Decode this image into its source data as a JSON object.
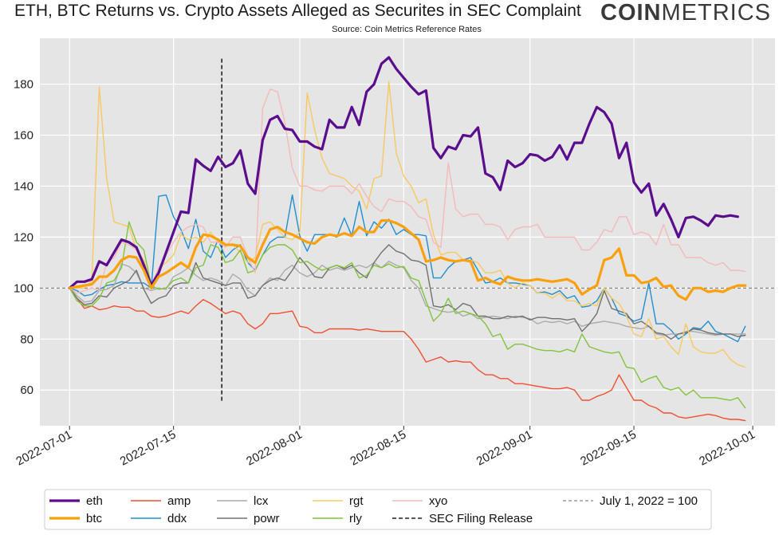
{
  "chart_data": {
    "type": "line",
    "title": "ETH, BTC Returns vs. Crypto Assets Alleged as Securites in SEC Complaint",
    "subtitle": "Source: Coin Metrics Reference Rates",
    "xlabel": "",
    "ylabel": "",
    "x_start": "2022-07-01",
    "x_ticks": [
      {
        "label": "2022-07-01",
        "day": 0
      },
      {
        "label": "2022-07-15",
        "day": 14
      },
      {
        "label": "2022-08-01",
        "day": 31
      },
      {
        "label": "2022-08-15",
        "day": 45
      },
      {
        "label": "2022-09-01",
        "day": 62
      },
      {
        "label": "2022-09-15",
        "day": 76
      },
      {
        "label": "2022-10-01",
        "day": 92
      }
    ],
    "xlim": [
      -4,
      95
    ],
    "ylim": [
      46,
      198
    ],
    "y_ticks": [
      60,
      80,
      100,
      120,
      140,
      160,
      180
    ],
    "grid": true,
    "legend_position": "bottom",
    "reference_line": {
      "name": "July 1, 2022 = 100",
      "value": 100,
      "color": "#888888"
    },
    "event_line": {
      "name": "SEC Filing Release",
      "day": 20.5,
      "y_range": [
        55,
        190
      ],
      "color": "#222222"
    },
    "series": [
      {
        "name": "eth",
        "color": "#5a0d8c",
        "width": 3.2,
        "values": [
          100,
          102.5,
          102.5,
          103.5,
          110.5,
          109,
          114,
          119,
          118,
          116,
          109,
          101,
          106,
          114,
          122,
          130,
          129.5,
          150.5,
          148,
          146,
          151.5,
          147.5,
          149,
          154,
          141,
          137,
          158,
          166,
          167.5,
          162.5,
          162,
          157.5,
          157.5,
          155.5,
          154.5,
          166,
          163,
          163,
          171,
          164,
          177,
          180,
          188,
          190.5,
          186,
          182.5,
          179,
          176,
          177.5,
          155,
          151,
          155.5,
          154.5,
          160,
          159.5,
          163,
          145,
          143.5,
          138.5,
          150,
          147.5,
          149,
          152.5,
          152,
          150,
          151.5,
          156,
          150.5,
          157,
          157,
          164.5,
          171,
          169,
          164.5,
          151,
          157,
          141.5,
          137.5,
          141,
          128.5,
          133,
          127,
          120,
          127.5,
          128,
          126.5,
          124.5,
          128.5,
          128,
          128.5,
          128
        ]
      },
      {
        "name": "btc",
        "color": "#f9a00c",
        "width": 3.2,
        "values": [
          100,
          100.5,
          101,
          101.5,
          104.5,
          104.5,
          107,
          111,
          112.5,
          112,
          107,
          100,
          104.5,
          106,
          108,
          110,
          108,
          116,
          121,
          120.5,
          119,
          117,
          117,
          116.5,
          112,
          110,
          117,
          123,
          124,
          122,
          121,
          119.5,
          118,
          117.5,
          120,
          121,
          120.5,
          121.5,
          120.5,
          124,
          122,
          122,
          126.5,
          126.5,
          125.5,
          124,
          121.5,
          119,
          110.5,
          111,
          112,
          111,
          110.5,
          111,
          110.5,
          103,
          104,
          102.5,
          101.5,
          104.5,
          103.5,
          103,
          103,
          103.5,
          103,
          102.5,
          103,
          103.5,
          102,
          97.5,
          99.5,
          101,
          111,
          112,
          115.5,
          105,
          105,
          102,
          102.5,
          104,
          100.5,
          101,
          97,
          95.5,
          100,
          100,
          98.5,
          99,
          98.5,
          100,
          101,
          101
        ]
      },
      {
        "name": "amp",
        "color": "#f05030",
        "width": 1.4,
        "values": [
          100,
          96,
          92,
          93,
          91.5,
          92,
          93,
          92.5,
          92.5,
          91,
          91,
          89,
          88.5,
          89,
          90,
          91,
          90,
          93,
          95.5,
          94,
          92,
          90,
          91,
          90,
          86,
          84,
          86,
          90,
          90,
          90.5,
          91,
          85,
          84.5,
          82.5,
          82.5,
          84,
          84,
          84,
          84,
          83.5,
          84,
          83.5,
          83,
          83,
          83,
          83,
          80,
          76,
          71,
          72,
          73,
          71,
          71.5,
          71,
          71,
          68,
          66,
          66,
          64.5,
          64.5,
          62.5,
          62.5,
          62,
          61.5,
          61,
          60.5,
          60.5,
          61,
          60,
          56,
          56,
          57.5,
          58.5,
          60,
          66,
          61,
          56,
          56,
          54,
          53,
          51,
          51,
          49.5,
          49,
          49.5,
          50,
          50.5,
          50,
          49,
          48.5,
          48.5,
          48
        ]
      },
      {
        "name": "ddx",
        "color": "#1f8fcf",
        "width": 1.4,
        "values": [
          100,
          99,
          97,
          97.5,
          99.5,
          101,
          101.5,
          102.5,
          102,
          102,
          102,
          100,
          136,
          136.5,
          128,
          123,
          115.5,
          127,
          114.5,
          112,
          119,
          112,
          115,
          117,
          110,
          107,
          113,
          118,
          120,
          120,
          136.5,
          120.5,
          114.5,
          121,
          121,
          121,
          120,
          127.5,
          120.5,
          134,
          120.5,
          126,
          123.5,
          127,
          121,
          123,
          121,
          121,
          120.5,
          104,
          104,
          108,
          110.5,
          111,
          112,
          107,
          102,
          102.5,
          104,
          102,
          102,
          101.5,
          101,
          98,
          98.5,
          97.5,
          99,
          96,
          97,
          92.5,
          93,
          95,
          100,
          96,
          90,
          89,
          87,
          88,
          102,
          86,
          86,
          83.5,
          80,
          82,
          84.5,
          84,
          87,
          83,
          82,
          80.5,
          79,
          85
        ]
      },
      {
        "name": "lcx",
        "color": "#ababab",
        "width": 1.4,
        "values": [
          100,
          97,
          94.5,
          95,
          99,
          99.5,
          101,
          109.5,
          108.5,
          106,
          100,
          99,
          100,
          99.5,
          104.5,
          106,
          108,
          105,
          103,
          104,
          103,
          101,
          105.5,
          103.5,
          99,
          97,
          101,
          104,
          103,
          107,
          109,
          106,
          104.5,
          106,
          109,
          107,
          108,
          107,
          108,
          109,
          108,
          110,
          108,
          110.5,
          109,
          108,
          103,
          100,
          93,
          92,
          91,
          90.5,
          91,
          89,
          90,
          88,
          88.5,
          89,
          88.5,
          88,
          89,
          88.5,
          88,
          86,
          87,
          86.5,
          87,
          86,
          87,
          85,
          86,
          86.5,
          87,
          86.5,
          86,
          85,
          84.5,
          84,
          85,
          82,
          81.5,
          82,
          82,
          83,
          83,
          82.5,
          82,
          81.5,
          82,
          82,
          82,
          82
        ]
      },
      {
        "name": "powr",
        "color": "#707070",
        "width": 1.4,
        "values": [
          100,
          96,
          93.5,
          94,
          97,
          96.5,
          100,
          101.5,
          103,
          107,
          99.5,
          94,
          96,
          97,
          101,
          102,
          102,
          110,
          104,
          103,
          102,
          101,
          102,
          102,
          96,
          97,
          101,
          103,
          104,
          103,
          107,
          112,
          108.5,
          104.5,
          104,
          108,
          109,
          107.5,
          109,
          106,
          104,
          110,
          114,
          117,
          114.5,
          113.5,
          111,
          110.5,
          109,
          93,
          92.5,
          93.5,
          91.5,
          94,
          93,
          89,
          89,
          88,
          88,
          89,
          88.5,
          89,
          87.5,
          88.5,
          88.5,
          88,
          88,
          87.5,
          88,
          83,
          86,
          90,
          99,
          92,
          91,
          90,
          86,
          87,
          85,
          82.5,
          82,
          80,
          82,
          82.5,
          84,
          83.5,
          82.5,
          82,
          82,
          82,
          81,
          81.5
        ]
      },
      {
        "name": "rgt",
        "color": "#f9c860",
        "width": 1.4,
        "values": [
          100,
          100,
          100,
          103,
          179,
          143,
          126,
          125,
          124,
          115,
          111,
          101,
          108,
          110,
          113,
          121,
          119,
          120,
          118,
          122,
          118,
          117,
          117,
          114,
          110,
          112,
          125,
          126,
          123,
          120,
          119,
          122,
          176.5,
          162,
          151,
          145,
          144,
          143,
          140,
          138,
          131,
          143,
          144,
          181,
          153,
          144,
          140,
          133.5,
          135,
          121,
          113,
          114,
          114,
          111,
          111,
          110,
          106,
          106,
          107,
          102,
          100,
          102,
          101,
          98,
          98,
          96,
          98,
          95,
          95,
          93,
          94,
          93,
          100,
          96,
          94,
          89,
          82,
          81,
          88,
          80,
          81,
          77,
          74,
          86,
          77,
          75,
          74.5,
          74.5,
          76,
          72,
          70,
          69
        ]
      },
      {
        "name": "rly",
        "color": "#82c43c",
        "width": 1.4,
        "values": [
          100,
          95,
          93,
          93,
          96,
          102,
          103,
          108,
          126,
          118,
          115,
          101,
          99.5,
          100,
          103,
          104,
          102,
          108,
          109,
          117,
          116,
          110,
          111,
          115,
          106,
          107,
          113,
          116,
          117,
          117,
          115,
          110,
          110.5,
          108.5,
          107,
          108,
          109,
          108,
          110,
          104,
          105,
          109,
          108,
          109.5,
          108,
          108.5,
          104,
          103,
          95,
          87,
          90,
          96,
          90,
          91,
          90,
          89,
          86,
          81,
          82,
          76,
          78,
          78,
          77,
          76,
          75.5,
          75.5,
          75,
          76,
          75,
          82,
          77,
          76,
          75,
          74.5,
          75,
          69,
          68.5,
          63,
          64.5,
          65.5,
          61,
          60,
          61,
          58,
          60,
          57,
          57,
          57,
          56.5,
          56,
          57,
          53
        ]
      },
      {
        "name": "xyo",
        "color": "#f5b9b9",
        "width": 1.4,
        "values": [
          100,
          98,
          99,
          100,
          99,
          110,
          112,
          118,
          117,
          115,
          110,
          101,
          108,
          113,
          118,
          122,
          124,
          125,
          124,
          118,
          118,
          116,
          120,
          120,
          112,
          106,
          170.5,
          178,
          177,
          165,
          147,
          140,
          140,
          138.5,
          138,
          140,
          140,
          140,
          137,
          141,
          136,
          132,
          130,
          135,
          134,
          134,
          132,
          128,
          127,
          118,
          116,
          149,
          131,
          128,
          129,
          129,
          125,
          125,
          124,
          119,
          123,
          124,
          124,
          125,
          120,
          120,
          120,
          120,
          120,
          115,
          115,
          118,
          123,
          122,
          128,
          128,
          121,
          122,
          121,
          117,
          125,
          117,
          117,
          112,
          112,
          112,
          110,
          109,
          110,
          107,
          107,
          106.5
        ]
      }
    ]
  },
  "brand": {
    "bold": "COIN",
    "light": "METRICS"
  }
}
